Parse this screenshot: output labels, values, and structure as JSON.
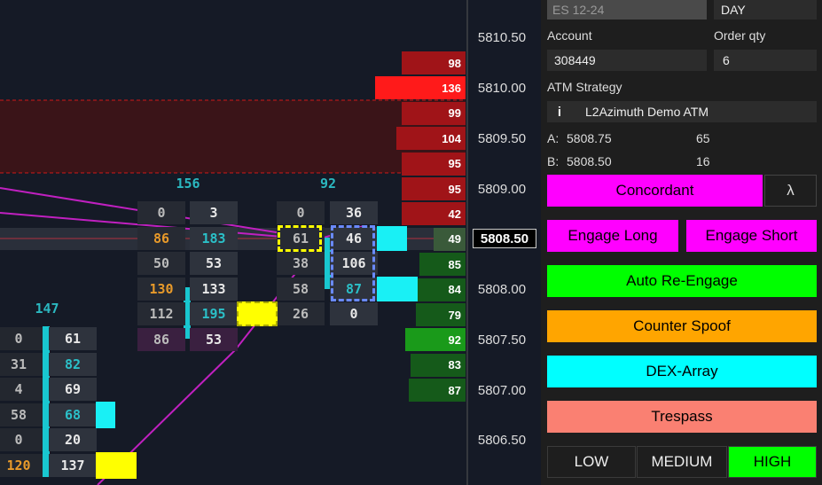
{
  "price_axis": [
    "5810.50",
    "5810.00",
    "5809.50",
    "5809.00",
    "5808.50",
    "5808.00",
    "5807.50",
    "5807.00",
    "5806.50"
  ],
  "ladder": [
    "98",
    "136",
    "99",
    "104",
    "95",
    "95",
    "42",
    "49",
    "85",
    "84",
    "79",
    "92",
    "83",
    "87"
  ],
  "footprint": {
    "column_totals": [
      "147",
      "156",
      "92"
    ],
    "columns": [
      [
        [
          "0",
          "61"
        ],
        [
          "31",
          "82"
        ],
        [
          "4",
          "69"
        ],
        [
          "58",
          "68"
        ],
        [
          "0",
          "20"
        ],
        [
          "120",
          "137"
        ]
      ],
      [
        [
          "0",
          "3"
        ],
        [
          "86",
          "183"
        ],
        [
          "50",
          "53"
        ],
        [
          "130",
          "133"
        ],
        [
          "112",
          "195"
        ],
        [
          "86",
          "53"
        ]
      ],
      [
        [
          "0",
          "36"
        ],
        [
          "61",
          "46"
        ],
        [
          "38",
          "106"
        ],
        [
          "58",
          "87"
        ],
        [
          "26",
          "0"
        ]
      ]
    ]
  },
  "panel": {
    "instrument": "ES 12-24",
    "tif": "DAY",
    "account_label": "Account",
    "qty_label": "Order qty",
    "account": "308449",
    "qty": "6",
    "atm_label": "ATM Strategy",
    "atm_icon": "i",
    "atm": "L2Azimuth Demo ATM",
    "ask": [
      "A:",
      "5808.75",
      "65"
    ],
    "bid": [
      "B:",
      "5808.50",
      "16"
    ],
    "buttons": [
      "Concordant",
      "λ",
      "Engage Long",
      "Engage Short",
      "Auto Re-Engage",
      "Counter Spoof",
      "DEX-Array",
      "Trespass"
    ],
    "levels": [
      "LOW",
      "MEDIUM",
      "HIGH"
    ]
  }
}
